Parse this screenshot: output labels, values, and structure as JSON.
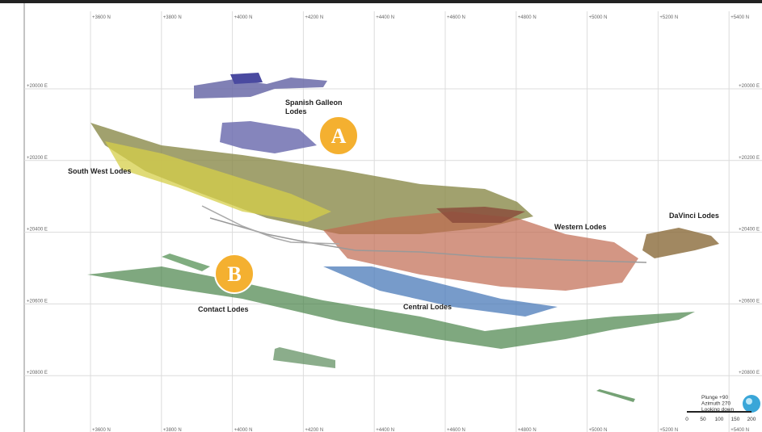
{
  "grid": {
    "northings": [
      "+3600 N",
      "+3800 N",
      "+4000 N",
      "+4200 N",
      "+4400 N",
      "+4600 N",
      "+4800 N",
      "+5000 N",
      "+5200 N",
      "+5400 N"
    ],
    "eastings": [
      "+20000 E",
      "+20200 E",
      "+20400 E",
      "+20600 E",
      "+20800 E"
    ]
  },
  "lodes": [
    {
      "label": "Spanish Galleon\nLodes"
    },
    {
      "label": "South West Lodes"
    },
    {
      "label": "Western Lodes"
    },
    {
      "label": "DaVinci Lodes"
    },
    {
      "label": "Contact Lodes"
    },
    {
      "label": "Central Lodes"
    }
  ],
  "markers": [
    {
      "label": "A"
    },
    {
      "label": "B"
    }
  ],
  "view": {
    "lines": [
      "Plunge +90",
      "Azimuth 270",
      "Looking down"
    ],
    "scale": [
      "0",
      "50",
      "100",
      "150",
      "200"
    ]
  }
}
